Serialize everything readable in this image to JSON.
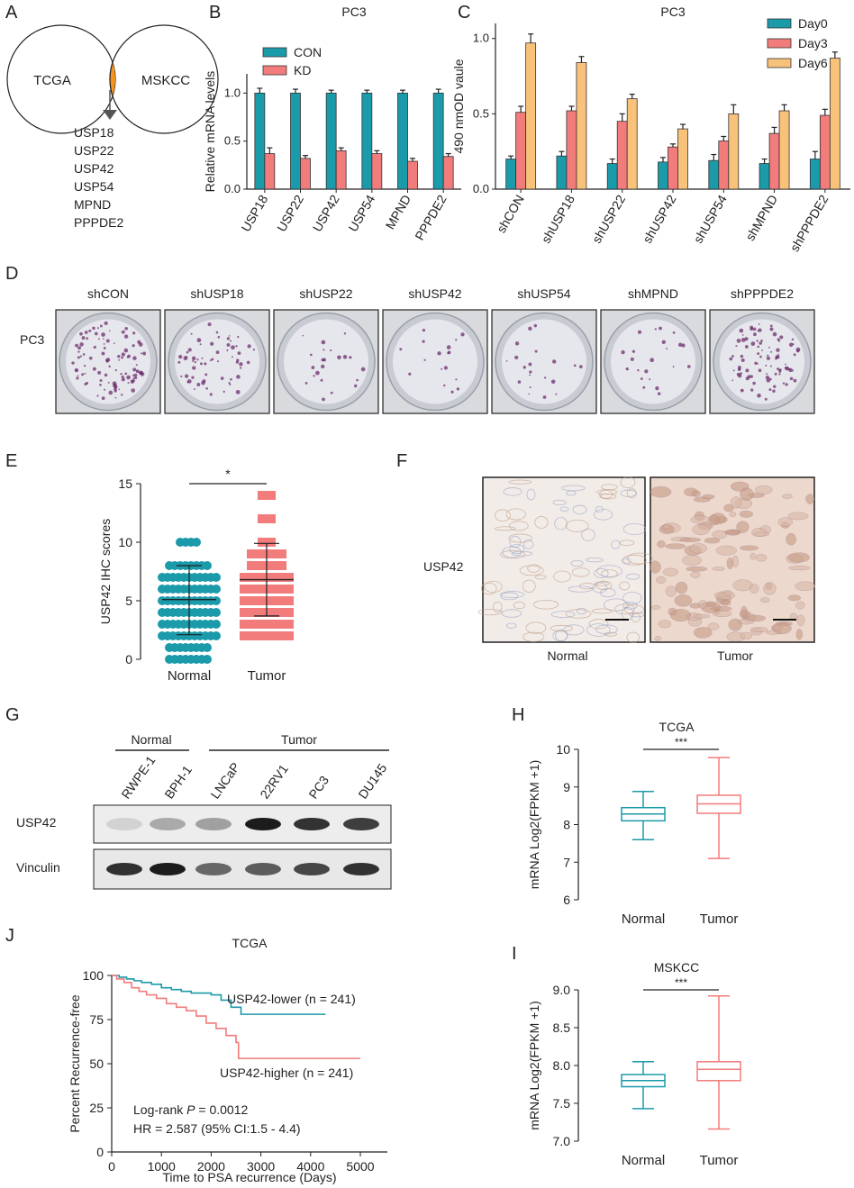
{
  "panel_letters": {
    "A": "A",
    "B": "B",
    "C": "C",
    "D": "D",
    "E": "E",
    "F": "F",
    "G": "G",
    "H": "H",
    "I": "I",
    "J": "J"
  },
  "panel_a": {
    "left": "TCGA",
    "right": "MSKCC",
    "genes": [
      "USP18",
      "USP22",
      "USP42",
      "USP54",
      "MPND",
      "PPPDE2"
    ],
    "overlap_color": "#f7941d"
  },
  "colors": {
    "teal": "#1b9aaa",
    "salmon": "#f27b7b",
    "orange": "#f8c27a",
    "navy": "#1a3d6e"
  },
  "panel_d": {
    "row_label": "PC3",
    "columns": [
      "shCON",
      "shUSP18",
      "shUSP22",
      "shUSP42",
      "shUSP54",
      "shMPND",
      "shPPPDE2"
    ],
    "colony_density": [
      0.9,
      0.55,
      0.2,
      0.15,
      0.18,
      0.2,
      0.85
    ]
  },
  "panel_f": {
    "row_label": "USP42",
    "captions": [
      "Normal",
      "Tumor"
    ]
  },
  "panel_g": {
    "groups": [
      "Normal",
      "Tumor"
    ],
    "lanes": [
      "RWPE-1",
      "BPH-1",
      "LNCaP",
      "22RV1",
      "PC3",
      "DU145"
    ],
    "rows": [
      "USP42",
      "Vinculin"
    ]
  },
  "chart_data": [
    {
      "panel": "B",
      "type": "bar",
      "title": "PC3",
      "ylabel": "Relative mRNA levels",
      "ylim": [
        0,
        1.2
      ],
      "yticks": [
        "0.0",
        "0.5",
        "1.0"
      ],
      "categories": [
        "USP18",
        "USP22",
        "USP42",
        "USP54",
        "MPND",
        "PPPDE2"
      ],
      "series": [
        {
          "name": "CON",
          "color": "#1b9aaa",
          "values": [
            1.0,
            1.0,
            1.0,
            1.0,
            1.0,
            1.0
          ],
          "errors": [
            0.05,
            0.04,
            0.03,
            0.03,
            0.03,
            0.04
          ]
        },
        {
          "name": "KD",
          "color": "#f27b7b",
          "values": [
            0.37,
            0.32,
            0.4,
            0.37,
            0.29,
            0.34
          ],
          "errors": [
            0.06,
            0.03,
            0.03,
            0.03,
            0.03,
            0.03
          ]
        }
      ]
    },
    {
      "panel": "C",
      "type": "bar",
      "title": "PC3",
      "ylabel": "490 nmOD vaule",
      "ylim": [
        0,
        1.1
      ],
      "yticks": [
        "0.0",
        "0.5",
        "1.0"
      ],
      "categories": [
        "shCON",
        "shUSP18",
        "shUSP22",
        "shUSP42",
        "shUSP54",
        "shMPND",
        "shPPPDE2"
      ],
      "series": [
        {
          "name": "Day0",
          "color": "#1b9aaa",
          "values": [
            0.2,
            0.22,
            0.17,
            0.18,
            0.19,
            0.17,
            0.2
          ],
          "errors": [
            0.02,
            0.03,
            0.03,
            0.03,
            0.04,
            0.03,
            0.05
          ]
        },
        {
          "name": "Day3",
          "color": "#f27b7b",
          "values": [
            0.51,
            0.52,
            0.45,
            0.28,
            0.32,
            0.37,
            0.49
          ],
          "errors": [
            0.04,
            0.03,
            0.05,
            0.02,
            0.03,
            0.04,
            0.04
          ]
        },
        {
          "name": "Day6",
          "color": "#f8c27a",
          "values": [
            0.97,
            0.84,
            0.6,
            0.4,
            0.5,
            0.52,
            0.87
          ],
          "errors": [
            0.06,
            0.04,
            0.03,
            0.03,
            0.06,
            0.04,
            0.04
          ]
        }
      ]
    },
    {
      "panel": "E",
      "type": "scatter",
      "ylabel": "USP42 IHC scores",
      "ylim": [
        0,
        15
      ],
      "yticks": [
        "0",
        "5",
        "10",
        "15"
      ],
      "categories": [
        "Normal",
        "Tumor"
      ],
      "significance": "*",
      "groups": [
        {
          "name": "Normal",
          "color": "#1b9aaa",
          "mean": 5.1,
          "sd_low": 2.1,
          "sd_high": 8.0,
          "levels": [
            0,
            1,
            2,
            3,
            4,
            5,
            6,
            7,
            8,
            10
          ]
        },
        {
          "name": "Tumor",
          "color": "#f27b7b",
          "mean": 6.8,
          "sd_low": 3.7,
          "sd_high": 9.9,
          "levels": [
            2,
            3,
            4,
            5,
            6,
            7,
            8,
            9,
            10,
            12,
            14
          ]
        }
      ]
    },
    {
      "panel": "H",
      "type": "box",
      "title": "TCGA",
      "ylabel": "mRNA Log2(FPKM +1)",
      "ylim": [
        6,
        10
      ],
      "yticks": [
        "6",
        "7",
        "8",
        "9",
        "10"
      ],
      "significance": "***",
      "boxes": [
        {
          "name": "Normal",
          "color": "#1b9aaa",
          "min": 7.6,
          "q1": 8.1,
          "median": 8.28,
          "q3": 8.45,
          "max": 8.88
        },
        {
          "name": "Tumor",
          "color": "#f27b7b",
          "min": 7.1,
          "q1": 8.3,
          "median": 8.55,
          "q3": 8.78,
          "max": 9.78
        }
      ]
    },
    {
      "panel": "I",
      "type": "box",
      "title": "MSKCC",
      "ylabel": "mRNA Log2(FPKM +1)",
      "ylim": [
        7.0,
        9.0
      ],
      "yticks": [
        "7.0",
        "7.5",
        "8.0",
        "8.5",
        "9.0"
      ],
      "significance": "***",
      "boxes": [
        {
          "name": "Normal",
          "color": "#1b9aaa",
          "min": 7.43,
          "q1": 7.72,
          "median": 7.8,
          "q3": 7.88,
          "max": 8.05
        },
        {
          "name": "Tumor",
          "color": "#f27b7b",
          "min": 7.16,
          "q1": 7.8,
          "median": 7.95,
          "q3": 8.05,
          "max": 8.92
        }
      ]
    },
    {
      "panel": "J",
      "type": "line",
      "title": "TCGA",
      "xlabel": "Time to PSA recurrence (Days)",
      "ylabel": "Percent Recurrence-free",
      "xlim": [
        0,
        5000
      ],
      "ylim": [
        0,
        100
      ],
      "xticks": [
        "0",
        "1000",
        "2000",
        "3000",
        "4000",
        "5000"
      ],
      "yticks": [
        "0",
        "25",
        "50",
        "75",
        "100"
      ],
      "annotations": {
        "logrank": "Log-rank ",
        "p_symbol": "P",
        "p_value": " = 0.0012",
        "hr": "HR = 2.587 (95% CI:1.5 - 4.4)"
      },
      "series": [
        {
          "name": "USP42-lower (n = 241)",
          "color": "#1b9aaa",
          "x": [
            0,
            150,
            300,
            450,
            600,
            800,
            1000,
            1200,
            1400,
            1600,
            1800,
            2000,
            2200,
            2400,
            2600,
            3000,
            3500,
            4300
          ],
          "y": [
            100,
            99,
            98,
            97,
            96,
            95,
            93,
            92,
            91,
            90,
            90,
            89,
            86,
            82,
            78,
            78,
            78,
            78
          ]
        },
        {
          "name": "USP42-higher (n = 241)",
          "color": "#f27b7b",
          "x": [
            0,
            100,
            250,
            400,
            550,
            700,
            900,
            1100,
            1300,
            1500,
            1700,
            1900,
            2100,
            2300,
            2500,
            2550,
            3000,
            4000,
            5000
          ],
          "y": [
            100,
            98,
            96,
            93,
            91,
            89,
            87,
            84,
            82,
            80,
            77,
            73,
            70,
            66,
            62,
            53,
            53,
            53,
            53
          ]
        }
      ]
    }
  ]
}
